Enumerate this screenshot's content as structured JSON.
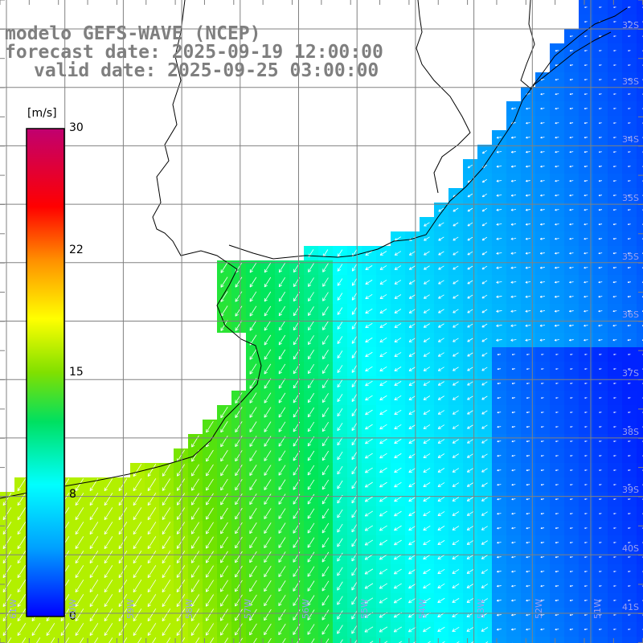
{
  "header": {
    "line1": "modelo GEFS-WAVE (NCEP)",
    "line2": "forecast date: 2025-09-19 12:00:00",
    "line3": "valid date: 2025-09-25 03:00:00"
  },
  "colorbar": {
    "unit": "[m/s]",
    "ticks": [
      "30",
      "22",
      "15",
      "8",
      "0"
    ],
    "tick_values": [
      30,
      22,
      15,
      8,
      0
    ],
    "range": [
      0,
      30
    ],
    "colors": [
      "#0000ff",
      "#00a0ff",
      "#00ffff",
      "#00e000",
      "#a0e000",
      "#ffff00",
      "#ff9000",
      "#ff0000",
      "#c00070"
    ]
  },
  "map": {
    "lat_labels": [
      "32S",
      "33S",
      "34S",
      "35S",
      "36S",
      "37S",
      "38S",
      "39S",
      "40S",
      "41S"
    ],
    "lon_labels": [
      "61W",
      "60W",
      "59W",
      "58W",
      "57W",
      "56W",
      "55W",
      "54W",
      "53W",
      "52W",
      "51W"
    ],
    "land_color": "#ffffff",
    "grid_color": "#808080",
    "arrow_color": "#ffffff",
    "field": "wind speed (m/s) with direction arrows over sea",
    "dominant_flow": "south-westward near coast, westward offshore"
  }
}
